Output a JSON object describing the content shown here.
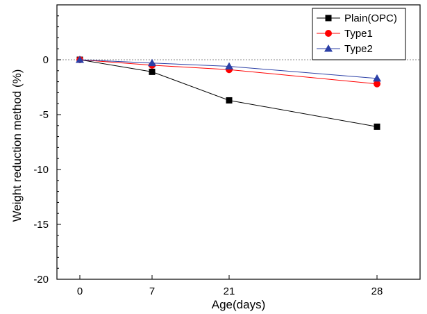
{
  "chart_data": {
    "type": "line",
    "title": "",
    "xlabel": "Age(days)",
    "ylabel": "Weight reduction method (%)",
    "categories": [
      "0",
      "7",
      "21",
      "28"
    ],
    "ylim": [
      -20,
      5
    ],
    "yticks": [
      "0",
      "-5",
      "-10",
      "-15",
      "-20"
    ],
    "zero_reference_line": true,
    "grid": false,
    "legend_position": "top-right",
    "series": [
      {
        "name": "Plain(OPC)",
        "values": [
          0,
          -1.1,
          -3.7,
          -6.1
        ],
        "color": "#000000",
        "marker": "square"
      },
      {
        "name": "Type1",
        "values": [
          0,
          -0.5,
          -0.9,
          -2.2
        ],
        "color": "#ff0000",
        "marker": "circle"
      },
      {
        "name": "Type2",
        "values": [
          0,
          -0.3,
          -0.6,
          -1.7
        ],
        "color": "#2b3fa6",
        "marker": "triangle"
      }
    ]
  }
}
